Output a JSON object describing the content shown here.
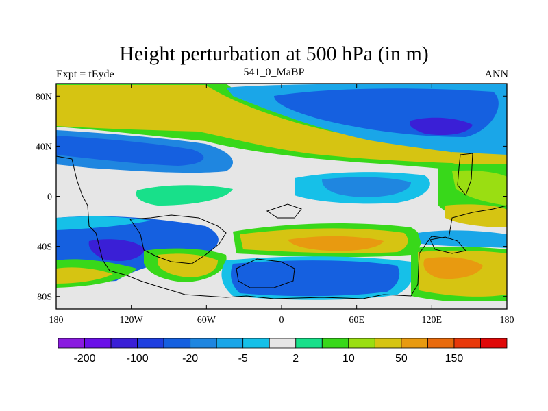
{
  "chart_data": {
    "type": "heatmap",
    "title": "Height perturbation at 500 hPa (in m)",
    "subtitle_left": "Expt = tEyde",
    "subtitle_center": "541_0_MaBP",
    "subtitle_right": "ANN",
    "x_ticks": [
      "180",
      "120W",
      "60W",
      "0",
      "60E",
      "120E",
      "180"
    ],
    "x_tick_values": [
      -180,
      -120,
      -60,
      0,
      60,
      120,
      180
    ],
    "y_ticks": [
      "80N",
      "40N",
      "0",
      "40S",
      "80S"
    ],
    "y_tick_values": [
      80,
      40,
      0,
      -40,
      -80
    ],
    "xlim": [
      -180,
      180
    ],
    "ylim": [
      -90,
      90
    ],
    "colorbar": {
      "colors": [
        "#8a1be0",
        "#6a10e8",
        "#3a1fd6",
        "#1f3fe0",
        "#1560e0",
        "#1f86e0",
        "#1aa6e8",
        "#16c0e8",
        "#e6e6e6",
        "#18e08a",
        "#38d81a",
        "#9ade12",
        "#d6c412",
        "#e89a10",
        "#e86a0c",
        "#e8380a",
        "#e00808"
      ],
      "labels": [
        "-200",
        "-100",
        "-20",
        "-5",
        "2",
        "10",
        "50",
        "150"
      ]
    },
    "features": [
      {
        "region": "N Pacific–Atlantic high-latitude band",
        "value_range": "10 to 50 m (positive)"
      },
      {
        "region": "Eurasian high latitudes (60N–80N, 30E–150E)",
        "value_range": "-20 to -100 m (negative)"
      },
      {
        "region": "Subtropical N Hemisphere (20N–40N, 180–90W)",
        "value_range": "-5 to -20 m (negative)"
      },
      {
        "region": "S Atlantic–Indian midlatitudes (30S–45S, 0–100E)",
        "value_range": "50 m (positive)"
      },
      {
        "region": "Southern Ocean 60S–70S, 30W–100E",
        "value_range": "-20 to -100 m (negative)"
      },
      {
        "region": "Australian sector 50S–70S, 120E–170E",
        "value_range": "50 m (positive)"
      }
    ]
  }
}
